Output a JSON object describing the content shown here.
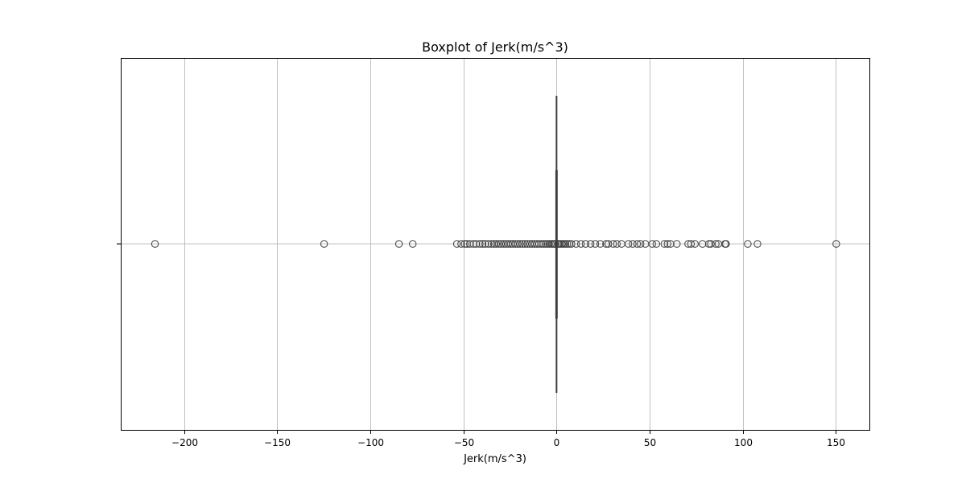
{
  "chart_data": {
    "type": "box",
    "orientation": "horizontal",
    "title": "Boxplot of Jerk(m/s^3)",
    "xlabel": "Jerk(m/s^3)",
    "ylabel": "",
    "xlim": [
      -234,
      168
    ],
    "xticks": [
      -200,
      -150,
      -100,
      -50,
      0,
      50,
      100,
      150
    ],
    "xtick_labels": [
      "−200",
      "−150",
      "−100",
      "−50",
      "0",
      "50",
      "100",
      "150"
    ],
    "grid": true,
    "box": {
      "whisker_low": -0.5,
      "q1": -0.3,
      "median": 0,
      "q3": 0.3,
      "whisker_high": 0.5
    },
    "outliers": [
      -215.6,
      -124.8,
      -84.6,
      -77.2,
      -53.5,
      -51.2,
      -49.3,
      -48.1,
      -46.5,
      -44.6,
      -43.1,
      -41.2,
      -39.7,
      -38.3,
      -36.6,
      -34.9,
      -33.6,
      -32.4,
      -31.1,
      -29.8,
      -28.4,
      -27.1,
      -25.9,
      -24.6,
      -23.4,
      -22.1,
      -20.9,
      -19.6,
      -18.3,
      -16.9,
      -15.6,
      -14.3,
      -13.1,
      -11.8,
      -10.6,
      -9.4,
      -8.2,
      -7.1,
      -6.0,
      -5.0,
      -4.0,
      -3.1,
      -2.2,
      -1.4,
      -0.9,
      0.9,
      1.4,
      2.2,
      3.0,
      3.9,
      4.8,
      5.8,
      6.9,
      8.0,
      10.5,
      13.1,
      15.6,
      18.3,
      20.8,
      23.5,
      26.6,
      27.8,
      30.4,
      32.4,
      34.9,
      38.6,
      40.9,
      43.3,
      45.1,
      47.7,
      51.4,
      53.6,
      57.9,
      59.6,
      61.2,
      64.6,
      70.7,
      72.2,
      74.3,
      78.4,
      81.8,
      82.9,
      85.5,
      86.9,
      90.5,
      91.0,
      102.7,
      107.9,
      150.2
    ]
  }
}
